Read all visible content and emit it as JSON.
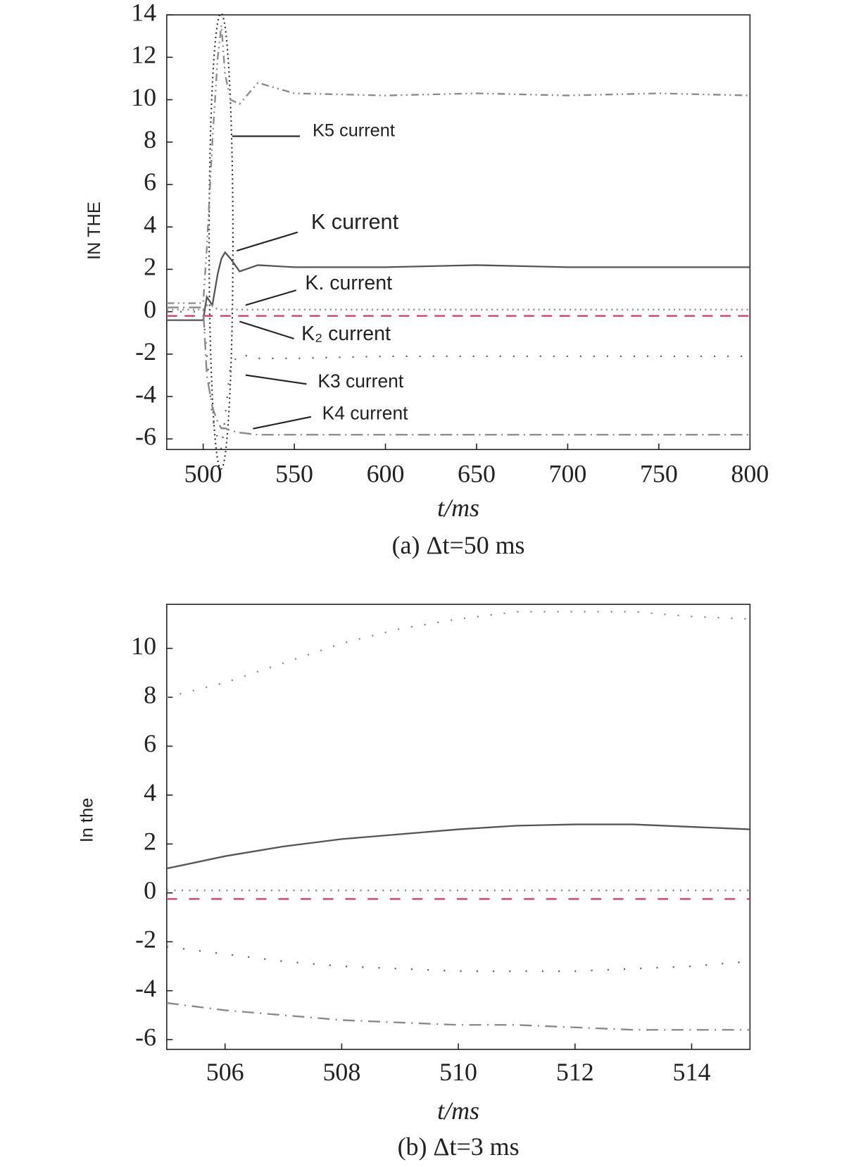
{
  "chart_data": [
    {
      "type": "line",
      "y_label": "IN THE",
      "x_label": "t/ms",
      "caption": "(a) Δt=50 ms",
      "xlim": [
        480,
        800
      ],
      "ylim": [
        -6.5,
        14
      ],
      "xticks": [
        500,
        550,
        600,
        650,
        700,
        750,
        800
      ],
      "yticks": [
        -6,
        -4,
        -2,
        0,
        2,
        4,
        6,
        8,
        10,
        12,
        14
      ],
      "x": [
        480,
        499,
        500,
        502,
        505,
        508,
        510,
        512,
        515,
        520,
        530,
        550,
        600,
        650,
        700,
        750,
        800
      ],
      "series": [
        {
          "name": "K5 current",
          "color": "#8a8a8a",
          "dash": "10 5 2 5 2 5",
          "values": [
            0.4,
            0.4,
            0.4,
            3,
            8,
            12,
            13.5,
            11.2,
            10,
            9.8,
            10.8,
            10.3,
            10.2,
            10.3,
            10.2,
            10.3,
            10.2
          ]
        },
        {
          "name": "K current",
          "color": "#555555",
          "dash": "none",
          "values": [
            -0.4,
            -0.4,
            -0.4,
            0.7,
            0.3,
            1.8,
            2.5,
            2.8,
            2.5,
            1.9,
            2.2,
            2.1,
            2.1,
            2.2,
            2.1,
            2.1,
            2.1
          ]
        },
        {
          "name": "K. current",
          "color": "#888888",
          "dash": "2 5",
          "values": [
            0.1,
            0.1,
            0.1,
            0.3,
            0.3,
            0.1,
            0.1,
            0.1,
            0.1,
            0.1,
            0.1,
            0.1,
            0.1,
            0.1,
            0.1,
            0.1,
            0.1
          ]
        },
        {
          "name": "K₂ current",
          "color": "#d0406a",
          "dash": "14 10",
          "values": [
            -0.2,
            -0.2,
            -0.2,
            -0.2,
            -0.2,
            -0.2,
            -0.2,
            -0.2,
            -0.2,
            -0.2,
            -0.2,
            -0.2,
            -0.2,
            -0.2,
            -0.2,
            -0.2,
            -0.2
          ]
        },
        {
          "name": "K3 current",
          "color": "#666666",
          "dash": "2 16",
          "values": [
            0,
            0,
            0,
            -2,
            -5,
            -6,
            -6.5,
            -5,
            -2.5,
            -2,
            -2.2,
            -2.2,
            -2.1,
            -2.1,
            -2.1,
            -2.1,
            -2.1
          ]
        },
        {
          "name": "K4 current",
          "color": "#888888",
          "dash": "16 6 2 6",
          "values": [
            0.2,
            0.2,
            0.2,
            -3,
            -4.5,
            -5.2,
            -5.5,
            -5.5,
            -5.6,
            -5.7,
            -5.8,
            -5.8,
            -5.8,
            -5.8,
            -5.8,
            -5.8,
            -5.8
          ]
        }
      ]
    },
    {
      "type": "line",
      "y_label": "In the",
      "x_label": "t/ms",
      "caption": "(b) Δt=3 ms",
      "xlim": [
        505,
        515
      ],
      "ylim": [
        -6.4,
        11.8
      ],
      "xticks": [
        506,
        508,
        510,
        512,
        514
      ],
      "yticks": [
        -6,
        -4,
        -2,
        0,
        2,
        4,
        6,
        8,
        10
      ],
      "x": [
        505,
        506,
        507,
        508,
        509,
        510,
        511,
        512,
        513,
        514,
        515
      ],
      "series": [
        {
          "color": "#8a8a8a",
          "dash": "2 16",
          "values": [
            8,
            8.6,
            9.4,
            10.2,
            10.8,
            11.2,
            11.5,
            11.5,
            11.5,
            11.3,
            11.2
          ]
        },
        {
          "color": "#555555",
          "dash": "none",
          "values": [
            1,
            1.5,
            1.9,
            2.2,
            2.4,
            2.6,
            2.75,
            2.8,
            2.8,
            2.7,
            2.6
          ]
        },
        {
          "color": "#888888",
          "dash": "2 8",
          "values": [
            0.1,
            0.1,
            0.1,
            0.1,
            0.1,
            0.1,
            0.1,
            0.1,
            0.1,
            0.1,
            0.1
          ]
        },
        {
          "color": "#d0406a",
          "dash": "14 16",
          "values": [
            -0.25,
            -0.25,
            -0.25,
            -0.25,
            -0.25,
            -0.25,
            -0.25,
            -0.25,
            -0.25,
            -0.25,
            -0.25
          ]
        },
        {
          "color": "#666666",
          "dash": "2 20",
          "values": [
            -2.2,
            -2.5,
            -2.8,
            -3.0,
            -3.1,
            -3.2,
            -3.2,
            -3.2,
            -3.1,
            -3.0,
            -2.8
          ]
        },
        {
          "color": "#888888",
          "dash": "16 8 2 8",
          "values": [
            -4.5,
            -4.8,
            -5.0,
            -5.2,
            -5.3,
            -5.4,
            -5.4,
            -5.5,
            -5.6,
            -5.6,
            -5.6
          ]
        }
      ]
    }
  ]
}
